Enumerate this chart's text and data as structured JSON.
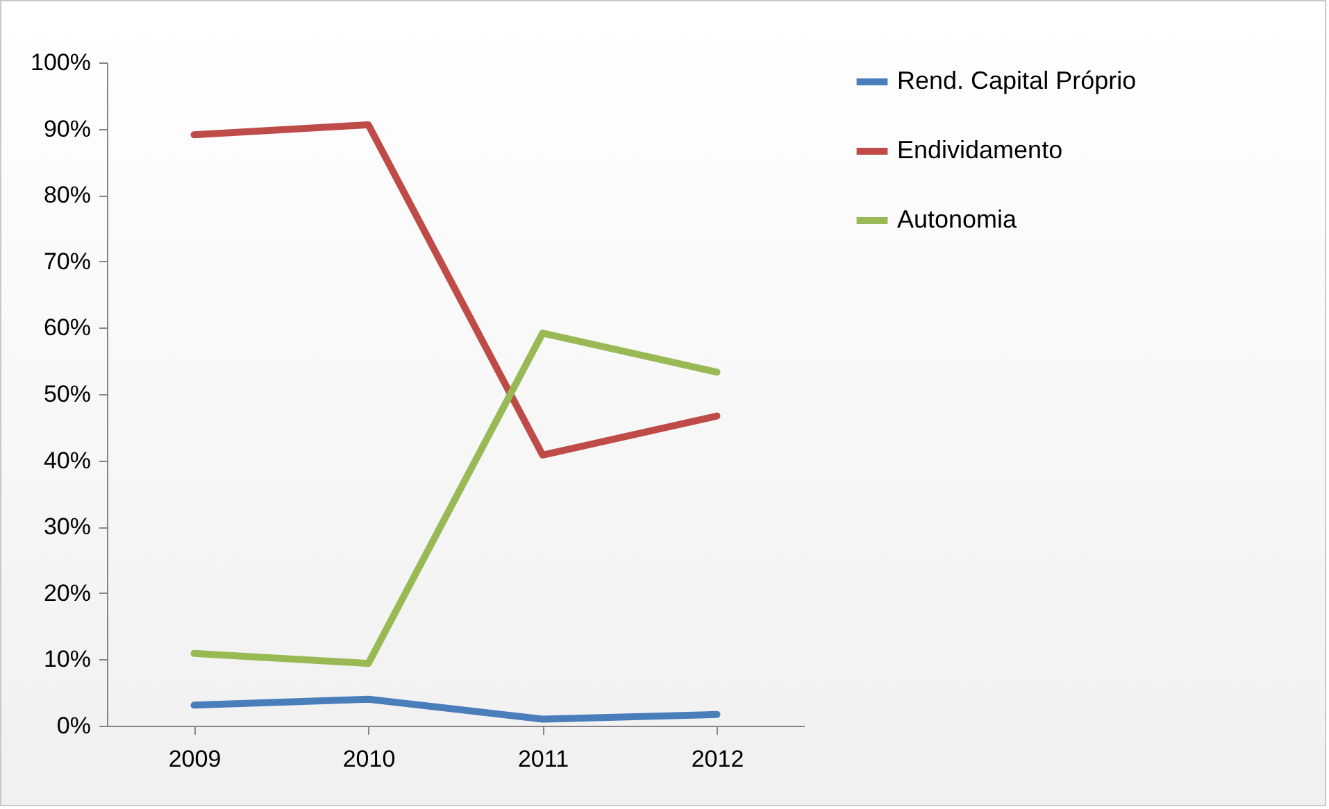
{
  "chart_data": {
    "type": "line",
    "categories": [
      "2009",
      "2010",
      "2011",
      "2012"
    ],
    "series": [
      {
        "name": "Rend. Capital Próprio",
        "color": "#4a7ebb",
        "values": [
          3.1,
          4.0,
          1.0,
          1.7
        ]
      },
      {
        "name": "Endividamento",
        "color": "#be4b48",
        "values": [
          89.1,
          90.6,
          40.8,
          46.7
        ]
      },
      {
        "name": "Autonomia",
        "color": "#98b954",
        "values": [
          10.9,
          9.4,
          59.2,
          53.3
        ]
      }
    ],
    "ylim": [
      0,
      100
    ],
    "yticks": [
      {
        "value": 0,
        "label": "0%"
      },
      {
        "value": 10,
        "label": "10%"
      },
      {
        "value": 20,
        "label": "20%"
      },
      {
        "value": 30,
        "label": "30%"
      },
      {
        "value": 40,
        "label": "40%"
      },
      {
        "value": 50,
        "label": "50%"
      },
      {
        "value": 60,
        "label": "60%"
      },
      {
        "value": 70,
        "label": "70%"
      },
      {
        "value": 80,
        "label": "80%"
      },
      {
        "value": 90,
        "label": "90%"
      },
      {
        "value": 100,
        "label": "100%"
      }
    ],
    "grid": false,
    "legend": "right",
    "marker": "none",
    "line_style": "solid"
  }
}
